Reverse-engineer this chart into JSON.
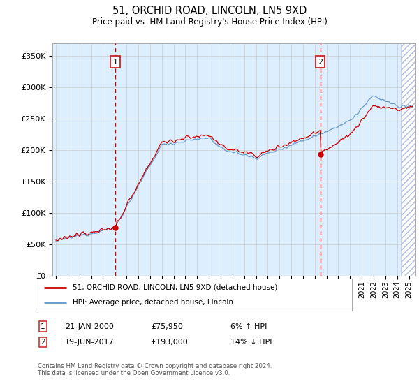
{
  "title": "51, ORCHID ROAD, LINCOLN, LN5 9XD",
  "subtitle": "Price paid vs. HM Land Registry's House Price Index (HPI)",
  "ylabel_ticks": [
    "£0",
    "£50K",
    "£100K",
    "£150K",
    "£200K",
    "£250K",
    "£300K",
    "£350K"
  ],
  "ytick_values": [
    0,
    50000,
    100000,
    150000,
    200000,
    250000,
    300000,
    350000
  ],
  "ylim": [
    0,
    370000
  ],
  "xlim_start": 1994.7,
  "xlim_end": 2025.5,
  "sale1_date": "21-JAN-2000",
  "sale1_year": 2000.05,
  "sale1_price": 75950,
  "sale1_hpi_pct": "6% ↑ HPI",
  "sale2_date": "19-JUN-2017",
  "sale2_year": 2017.46,
  "sale2_price": 193000,
  "sale2_hpi_pct": "14% ↓ HPI",
  "legend_label1": "51, ORCHID ROAD, LINCOLN, LN5 9XD (detached house)",
  "legend_label2": "HPI: Average price, detached house, Lincoln",
  "footer": "Contains HM Land Registry data © Crown copyright and database right 2024.\nThis data is licensed under the Open Government Licence v3.0.",
  "line_color_red": "#cc0000",
  "line_color_blue": "#6699cc",
  "bg_color": "#ddeeff",
  "grid_color": "#cccccc",
  "dashed_line_color": "#cc0000",
  "hatch_start": 2024.3
}
